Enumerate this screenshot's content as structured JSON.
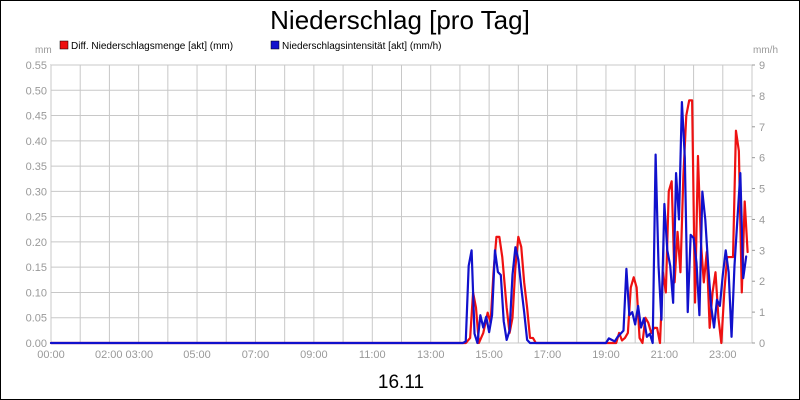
{
  "chart_data": {
    "type": "line",
    "title": "Niederschlag [pro Tag]",
    "date_label": "16.11",
    "y_left_unit": "mm",
    "y_right_unit": "mm/h",
    "ylim_left": [
      0,
      0.55
    ],
    "ylim_right": [
      0,
      9
    ],
    "xlim_hours": [
      0,
      24
    ],
    "left_ticks": [
      "0.00",
      "0.05",
      "0.10",
      "0.15",
      "0.20",
      "0.25",
      "0.30",
      "0.35",
      "0.40",
      "0.45",
      "0.50",
      "0.55"
    ],
    "right_ticks": [
      "0",
      "1",
      "2",
      "3",
      "4",
      "5",
      "6",
      "7",
      "8",
      "9"
    ],
    "x_ticks": [
      "00:00",
      "02:00 03:00",
      "05:00",
      "07:00",
      "09:00",
      "11:00",
      "13:00",
      "15:00",
      "17:00",
      "19:00",
      "21:00",
      "23:00"
    ],
    "grid": true,
    "legend_position": "top-left",
    "series": [
      {
        "name": "Diff. Niederschlagsmenge [akt] (mm)",
        "color": "#ee1111",
        "axis": "left",
        "points": [
          [
            0,
            0
          ],
          [
            14.2,
            0
          ],
          [
            14.35,
            0.01
          ],
          [
            14.45,
            0.1
          ],
          [
            14.55,
            0.07
          ],
          [
            14.65,
            0.0
          ],
          [
            14.8,
            0.02
          ],
          [
            14.95,
            0.06
          ],
          [
            15.05,
            0.04
          ],
          [
            15.15,
            0.14
          ],
          [
            15.25,
            0.21
          ],
          [
            15.35,
            0.21
          ],
          [
            15.45,
            0.17
          ],
          [
            15.6,
            0.07
          ],
          [
            15.7,
            0.02
          ],
          [
            15.8,
            0.05
          ],
          [
            15.9,
            0.15
          ],
          [
            16.0,
            0.21
          ],
          [
            16.1,
            0.19
          ],
          [
            16.2,
            0.12
          ],
          [
            16.3,
            0.07
          ],
          [
            16.4,
            0.01
          ],
          [
            16.5,
            0.01
          ],
          [
            16.6,
            0.0
          ],
          [
            19.2,
            0.0
          ],
          [
            19.35,
            0.0
          ],
          [
            19.45,
            0.02
          ],
          [
            19.55,
            0.005
          ],
          [
            19.65,
            0.01
          ],
          [
            19.75,
            0.02
          ],
          [
            19.85,
            0.11
          ],
          [
            19.95,
            0.13
          ],
          [
            20.05,
            0.11
          ],
          [
            20.15,
            0.01
          ],
          [
            20.25,
            0.0
          ],
          [
            20.35,
            0.05
          ],
          [
            20.45,
            0.04
          ],
          [
            20.55,
            0.02
          ],
          [
            20.65,
            0.03
          ],
          [
            20.75,
            0.03
          ],
          [
            20.85,
            0.0
          ],
          [
            20.95,
            0.14
          ],
          [
            21.05,
            0.1
          ],
          [
            21.15,
            0.3
          ],
          [
            21.25,
            0.32
          ],
          [
            21.35,
            0.12
          ],
          [
            21.45,
            0.22
          ],
          [
            21.55,
            0.14
          ],
          [
            21.65,
            0.33
          ],
          [
            21.75,
            0.45
          ],
          [
            21.85,
            0.48
          ],
          [
            21.95,
            0.48
          ],
          [
            22.05,
            0.08
          ],
          [
            22.15,
            0.37
          ],
          [
            22.25,
            0.2
          ],
          [
            22.35,
            0.12
          ],
          [
            22.45,
            0.18
          ],
          [
            22.55,
            0.03
          ],
          [
            22.65,
            0.1
          ],
          [
            22.75,
            0.14
          ],
          [
            22.85,
            0.05
          ],
          [
            22.95,
            0.0
          ],
          [
            23.05,
            0.1
          ],
          [
            23.15,
            0.17
          ],
          [
            23.25,
            0.17
          ],
          [
            23.35,
            0.17
          ],
          [
            23.45,
            0.42
          ],
          [
            23.55,
            0.38
          ],
          [
            23.65,
            0.1
          ],
          [
            23.75,
            0.28
          ],
          [
            23.85,
            0.18
          ]
        ]
      },
      {
        "name": "Niederschlagsintensität [akt] (mm/h)",
        "color": "#1111cc",
        "axis": "right",
        "points": [
          [
            0,
            0
          ],
          [
            14.1,
            0
          ],
          [
            14.2,
            0.05
          ],
          [
            14.3,
            2.5
          ],
          [
            14.4,
            3.0
          ],
          [
            14.5,
            0.3
          ],
          [
            14.6,
            0.0
          ],
          [
            14.7,
            0.9
          ],
          [
            14.8,
            0.5
          ],
          [
            14.9,
            0.85
          ],
          [
            15.0,
            0.35
          ],
          [
            15.1,
            0.9
          ],
          [
            15.2,
            3.0
          ],
          [
            15.3,
            2.3
          ],
          [
            15.4,
            2.2
          ],
          [
            15.5,
            0.7
          ],
          [
            15.6,
            0.1
          ],
          [
            15.7,
            0.4
          ],
          [
            15.8,
            2.2
          ],
          [
            15.9,
            3.1
          ],
          [
            16.0,
            2.7
          ],
          [
            16.1,
            1.8
          ],
          [
            16.2,
            1.0
          ],
          [
            16.3,
            0.1
          ],
          [
            16.4,
            0.0
          ],
          [
            19.0,
            0.0
          ],
          [
            19.1,
            0.15
          ],
          [
            19.2,
            0.1
          ],
          [
            19.3,
            0.05
          ],
          [
            19.4,
            0.2
          ],
          [
            19.5,
            0.3
          ],
          [
            19.6,
            0.4
          ],
          [
            19.7,
            2.4
          ],
          [
            19.8,
            0.9
          ],
          [
            19.9,
            1.0
          ],
          [
            20.0,
            0.6
          ],
          [
            20.1,
            1.2
          ],
          [
            20.2,
            0.5
          ],
          [
            20.3,
            0.8
          ],
          [
            20.4,
            0.2
          ],
          [
            20.5,
            0.3
          ],
          [
            20.6,
            0.0
          ],
          [
            20.7,
            6.1
          ],
          [
            20.8,
            2.5
          ],
          [
            20.9,
            0.75
          ],
          [
            21.0,
            4.5
          ],
          [
            21.1,
            3.0
          ],
          [
            21.2,
            2.5
          ],
          [
            21.3,
            1.3
          ],
          [
            21.4,
            5.5
          ],
          [
            21.5,
            4.0
          ],
          [
            21.6,
            7.8
          ],
          [
            21.7,
            6.0
          ],
          [
            21.8,
            1.0
          ],
          [
            21.9,
            3.5
          ],
          [
            22.0,
            3.4
          ],
          [
            22.1,
            2.6
          ],
          [
            22.2,
            0.9
          ],
          [
            22.3,
            4.9
          ],
          [
            22.4,
            4.0
          ],
          [
            22.5,
            2.5
          ],
          [
            22.6,
            1.2
          ],
          [
            22.7,
            0.5
          ],
          [
            22.8,
            1.4
          ],
          [
            22.9,
            1.2
          ],
          [
            23.0,
            2.2
          ],
          [
            23.1,
            3.0
          ],
          [
            23.2,
            2.3
          ],
          [
            23.3,
            0.2
          ],
          [
            23.4,
            2.5
          ],
          [
            23.5,
            4.0
          ],
          [
            23.6,
            5.5
          ],
          [
            23.7,
            2.1
          ],
          [
            23.8,
            2.8
          ]
        ]
      }
    ]
  }
}
